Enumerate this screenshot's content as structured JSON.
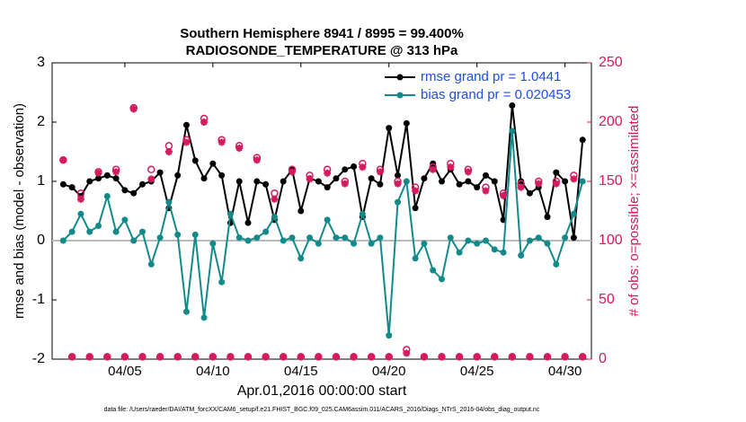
{
  "chart_data": {
    "type": "line",
    "title": "Southern Hemisphere 8941 / 8995 = 99.400%",
    "subtitle": "RADIOSONDE_TEMPERATURE @ 313 hPa",
    "xlabel": "Apr.01,2016 00:00:00 start",
    "ylabel": "rmse and bias (model - observation)",
    "y2label": "# of obs: o=possible; ×=assimilated",
    "footnote": "data file: /Users/raeder/DAI/ATM_forcXX/CAM6_setup/f.e21.FHIST_BGC.f09_025.CAM6assim.011/ACARS_2016/Diags_NTrS_2016-04/obs_diag_output.nc",
    "xlim": [
      -0.13,
      30.5
    ],
    "xticks": [
      {
        "value": 4,
        "label": "04/05"
      },
      {
        "value": 9,
        "label": "04/10"
      },
      {
        "value": 14,
        "label": "04/15"
      },
      {
        "value": 19,
        "label": "04/20"
      },
      {
        "value": 24,
        "label": "04/25"
      },
      {
        "value": 29,
        "label": "04/30"
      }
    ],
    "ylim": [
      -2,
      3
    ],
    "yticks": [
      -2,
      -1,
      0,
      1,
      2,
      3
    ],
    "y2lim": [
      0,
      250
    ],
    "y2ticks": [
      0,
      50,
      100,
      150,
      200,
      250
    ],
    "legend": "upper right",
    "x": [
      0.5,
      1,
      1.5,
      2,
      2.5,
      3,
      3.5,
      4,
      4.5,
      5,
      5.5,
      6,
      6.5,
      7,
      7.5,
      8,
      8.5,
      9,
      9.5,
      10,
      10.5,
      11,
      11.5,
      12,
      12.5,
      13,
      13.5,
      14,
      14.5,
      15,
      15.5,
      16,
      16.5,
      17,
      17.5,
      18,
      18.5,
      19,
      19.5,
      20,
      20.5,
      21,
      21.5,
      22,
      22.5,
      23,
      23.5,
      24,
      24.5,
      25,
      25.5,
      26,
      26.5,
      27,
      27.5,
      28,
      28.5,
      29,
      29.5,
      30
    ],
    "series": [
      {
        "name": "rmse grand pr = 1.0441",
        "color": "#000000",
        "marker": "dot",
        "values": [
          0.95,
          0.9,
          0.75,
          1.0,
          1.05,
          1.1,
          1.05,
          0.85,
          0.8,
          0.95,
          1.0,
          1.15,
          0.55,
          1.1,
          1.95,
          1.35,
          1.05,
          1.3,
          1.1,
          0.3,
          1.0,
          0.3,
          1.0,
          0.95,
          0.35,
          1.0,
          1.2,
          0.5,
          1.05,
          1.0,
          0.9,
          1.05,
          1.2,
          1.25,
          0.4,
          1.05,
          0.95,
          1.9,
          1.1,
          1.98,
          0.55,
          1.05,
          1.3,
          1.0,
          1.2,
          0.95,
          1.0,
          0.9,
          1.1,
          1.0,
          0.35,
          2.28,
          1.0,
          0.8,
          0.9,
          0.4,
          1.15,
          1.0,
          0.05,
          1.7
        ]
      },
      {
        "name": "bias grand pr = 0.020453",
        "color": "#138a8a",
        "marker": "dot",
        "values": [
          0.0,
          0.15,
          0.45,
          0.15,
          0.25,
          0.75,
          0.15,
          0.35,
          0.0,
          0.15,
          -0.4,
          0.05,
          0.65,
          0.1,
          -1.2,
          0.1,
          -1.3,
          -0.05,
          -0.7,
          0.45,
          0.05,
          0.0,
          0.05,
          0.15,
          0.4,
          0.0,
          0.05,
          -0.3,
          0.05,
          -0.05,
          0.35,
          0.05,
          0.05,
          -0.05,
          0.45,
          -0.05,
          0.05,
          -1.6,
          0.65,
          1.0,
          -0.3,
          -0.05,
          -0.5,
          -0.65,
          0.05,
          -0.2,
          0.0,
          -0.05,
          0.0,
          -0.15,
          -0.2,
          1.85,
          -0.25,
          0.0,
          0.05,
          -0.05,
          -0.4,
          0.05,
          0.45,
          1.0
        ]
      },
      {
        "color": "#d61a5e",
        "marker": "circle",
        "axis": "y2",
        "values": [
          168,
          2,
          140,
          2,
          158,
          2,
          160,
          2,
          212,
          2,
          160,
          2,
          180,
          2,
          185,
          2,
          203,
          2,
          185,
          2,
          180,
          2,
          170,
          2,
          140,
          2,
          160,
          2,
          155,
          2,
          160,
          2,
          150,
          2,
          165,
          2,
          160,
          2,
          150,
          8,
          145,
          2,
          162,
          2,
          165,
          2,
          160,
          2,
          145,
          2,
          140,
          2,
          148,
          2,
          150,
          2,
          150,
          2,
          155,
          2
        ]
      },
      {
        "color": "#d61a5e",
        "marker": "star",
        "axis": "y2",
        "values": [
          168,
          2,
          135,
          2,
          157,
          2,
          158,
          2,
          211,
          2,
          152,
          2,
          175,
          2,
          183,
          2,
          200,
          2,
          183,
          2,
          178,
          2,
          168,
          2,
          135,
          2,
          158,
          2,
          152,
          2,
          157,
          2,
          148,
          2,
          162,
          2,
          158,
          2,
          148,
          5,
          142,
          2,
          160,
          2,
          162,
          2,
          158,
          2,
          142,
          2,
          138,
          2,
          145,
          2,
          148,
          2,
          148,
          2,
          152,
          2
        ]
      }
    ]
  }
}
